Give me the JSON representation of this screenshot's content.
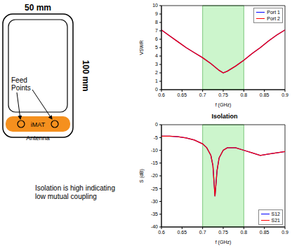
{
  "chart_data": [
    {
      "type": "line",
      "x_label": "f (GHz)",
      "y_label": "VSWR",
      "xlim": [
        0.6,
        0.9
      ],
      "xticks": [
        0.6,
        0.65,
        0.7,
        0.75,
        0.8,
        0.85,
        0.9
      ],
      "ylim": [
        0,
        10
      ],
      "yticks": [
        0,
        1,
        2,
        3,
        4,
        5,
        6,
        7,
        8,
        9,
        10
      ],
      "grid": false,
      "legend": "upper right",
      "shaded_band": {
        "x": [
          0.7,
          0.8
        ],
        "color": "#ccf5cc"
      },
      "x": [
        0.6,
        0.62,
        0.64,
        0.66,
        0.68,
        0.7,
        0.72,
        0.74,
        0.75,
        0.76,
        0.78,
        0.8,
        0.82,
        0.84,
        0.86,
        0.88,
        0.9
      ],
      "series": [
        {
          "name": "Port 1",
          "color": "#0000ff",
          "values": [
            7.1,
            6.4,
            5.7,
            5.0,
            4.4,
            3.8,
            3.1,
            2.3,
            2.0,
            2.2,
            2.8,
            3.5,
            4.3,
            5.0,
            5.8,
            6.5,
            7.1
          ]
        },
        {
          "name": "Port 2",
          "color": "#ff0000",
          "values": [
            7.1,
            6.4,
            5.7,
            5.0,
            4.4,
            3.8,
            3.1,
            2.3,
            2.0,
            2.2,
            2.8,
            3.5,
            4.3,
            5.0,
            5.8,
            6.5,
            7.1
          ]
        }
      ]
    },
    {
      "type": "line",
      "title": "Isolation",
      "x_label": "f (GHz)",
      "y_label": "S (dB)",
      "xlim": [
        0.6,
        0.9
      ],
      "xticks": [
        0.6,
        0.65,
        0.7,
        0.75,
        0.8,
        0.85,
        0.9
      ],
      "ylim": [
        -40,
        0
      ],
      "yticks": [
        -40,
        -35,
        -30,
        -25,
        -20,
        -15,
        -10,
        -5,
        0
      ],
      "grid": false,
      "legend": "lower right",
      "shaded_band": {
        "x": [
          0.7,
          0.8
        ],
        "color": "#ccf5cc"
      },
      "x": [
        0.6,
        0.62,
        0.64,
        0.66,
        0.68,
        0.7,
        0.71,
        0.72,
        0.725,
        0.73,
        0.735,
        0.74,
        0.75,
        0.76,
        0.78,
        0.8,
        0.82,
        0.84,
        0.86,
        0.88,
        0.9
      ],
      "series": [
        {
          "name": "S12",
          "color": "#0000ff",
          "values": [
            -4.5,
            -4.5,
            -4.7,
            -5.2,
            -6,
            -7.5,
            -9,
            -12,
            -16,
            -28,
            -18,
            -13,
            -10,
            -9,
            -9,
            -10,
            -11,
            -12,
            -11.5,
            -11,
            -10.5
          ]
        },
        {
          "name": "S21",
          "color": "#ff0000",
          "values": [
            -4.5,
            -4.5,
            -4.7,
            -5.2,
            -6,
            -7.5,
            -9,
            -12,
            -16,
            -28,
            -18,
            -13,
            -10,
            -9,
            -9,
            -10,
            -11,
            -12,
            -11.5,
            -11,
            -10.5
          ]
        }
      ]
    }
  ],
  "diagram": {
    "width_label": "50 mm",
    "height_label": "100 mm",
    "feed_label": [
      "Feed",
      "Points"
    ],
    "antenna_label": [
      "iMAT",
      "Antenna"
    ],
    "note": [
      "Isolation is high indicating",
      "low mutual coupling"
    ]
  }
}
